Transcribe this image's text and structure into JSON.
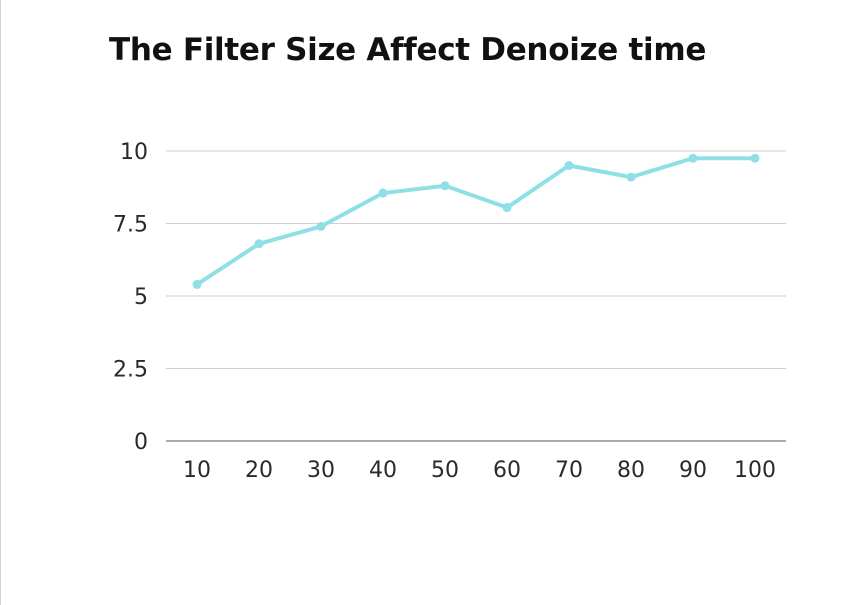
{
  "chart_data": {
    "type": "line",
    "title": "The Filter Size Affect Denoize time",
    "xlabel": "",
    "ylabel": "",
    "categories": [
      "10",
      "20",
      "30",
      "40",
      "50",
      "60",
      "70",
      "80",
      "90",
      "100"
    ],
    "series": [
      {
        "values": [
          5.4,
          6.8,
          7.4,
          8.55,
          8.8,
          8.05,
          9.5,
          9.1,
          9.75,
          9.75
        ],
        "color": "#8ee0e6"
      }
    ],
    "yticks": [
      "0",
      "2.5",
      "5",
      "7.5",
      "10"
    ],
    "ytick_values": [
      0,
      2.5,
      5,
      7.5,
      10
    ],
    "ylim": [
      0,
      10
    ],
    "grid": true,
    "legend": "none"
  }
}
